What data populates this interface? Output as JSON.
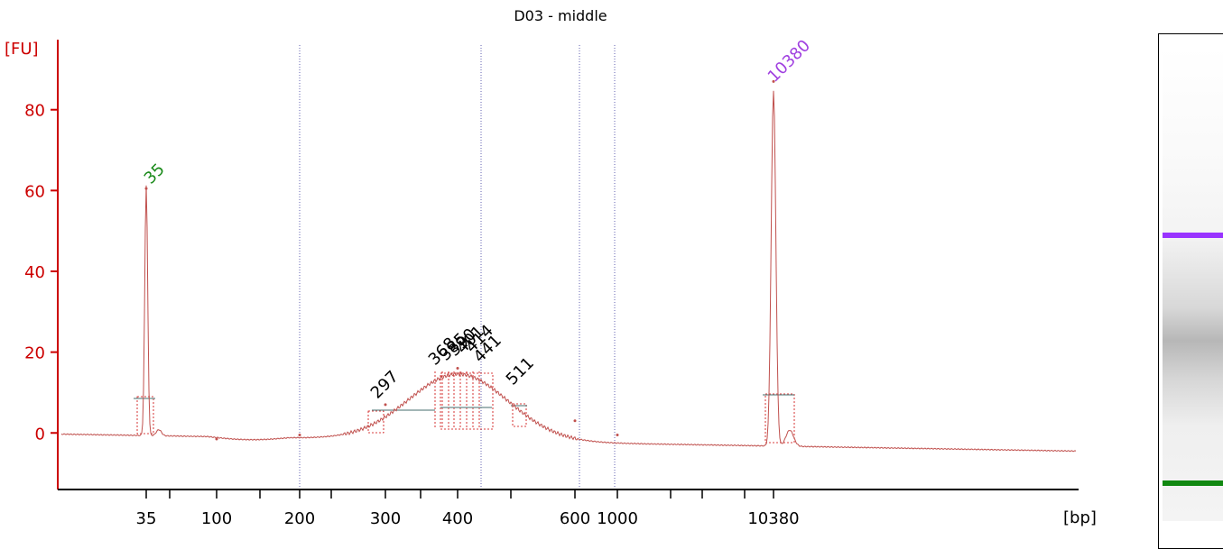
{
  "chart_data": {
    "type": "line",
    "title": "D03 - middle",
    "ylabel": "[FU]",
    "xlabel": "[bp]",
    "ylim": [
      -14,
      96
    ],
    "yticks": [
      0,
      20,
      40,
      60,
      80
    ],
    "xtick_labels": [
      "35",
      "100",
      "200",
      "300",
      "400",
      "600",
      "1000",
      "10380"
    ],
    "grid": false,
    "series": [
      {
        "color": "#c0504d",
        "x": [
          "35",
          "100",
          "200",
          "300",
          "400",
          "600",
          "1000",
          "10380"
        ],
        "y": [
          60.5,
          -1.5,
          -0.5,
          7,
          16,
          3,
          -0.5,
          87
        ]
      }
    ],
    "peak_labels": [
      {
        "text": "35",
        "color": "#1a8a1a"
      },
      {
        "text": "297",
        "color": "#000000"
      },
      {
        "text": "368",
        "color": "#000000"
      },
      {
        "text": "385",
        "color": "#000000"
      },
      {
        "text": "390",
        "color": "#000000"
      },
      {
        "text": "401",
        "color": "#000000"
      },
      {
        "text": "414",
        "color": "#000000"
      },
      {
        "text": "441",
        "color": "#000000"
      },
      {
        "text": "511",
        "color": "#000000"
      },
      {
        "text": "10380",
        "color": "#a040e0"
      }
    ]
  },
  "colors": {
    "axis": "#cc0000",
    "trace": "#c0504d",
    "marker_line": "#6060b0",
    "ladder_upper": "#9933ff",
    "ladder_lower": "#118811"
  }
}
